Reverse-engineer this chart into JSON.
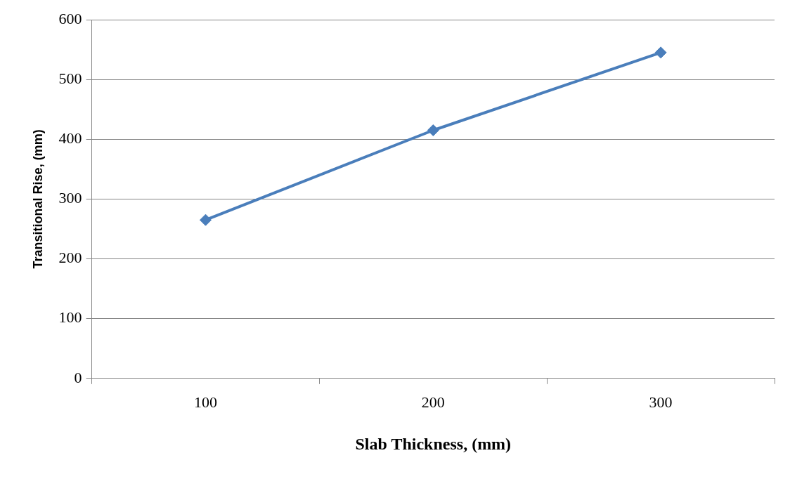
{
  "chart_data": {
    "type": "line",
    "xlabel": "Slab Thickness, (mm)",
    "ylabel": "Transitional Rise, (mm)",
    "categories": [
      "100",
      "200",
      "300"
    ],
    "series": [
      {
        "color": "#4a7ebb",
        "values": [
          265,
          415,
          545
        ]
      }
    ],
    "ylim": [
      0,
      600
    ],
    "yticks": [
      0,
      100,
      200,
      300,
      400,
      500,
      600
    ],
    "grid": "y",
    "legend": false,
    "marker": "diamond",
    "line_style": "solid"
  }
}
